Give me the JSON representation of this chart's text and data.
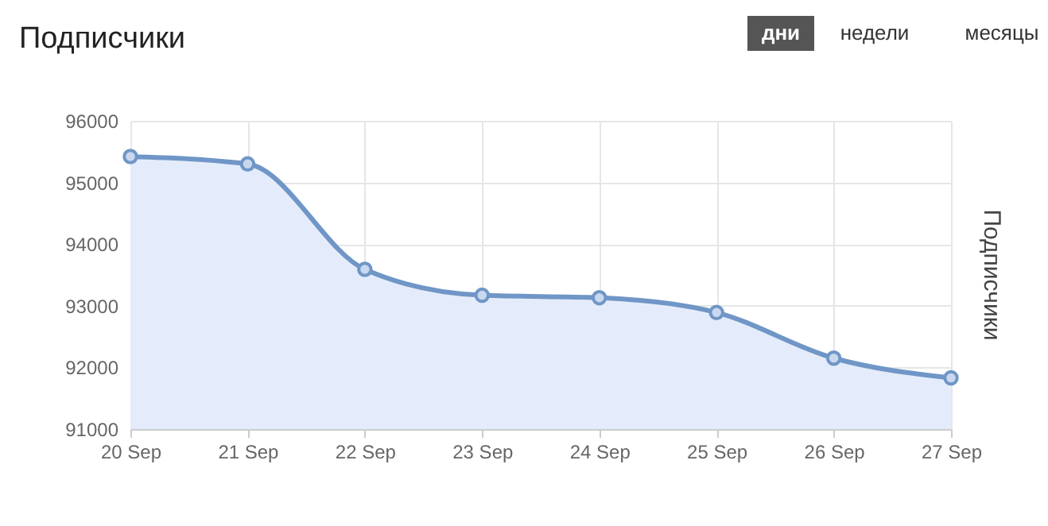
{
  "chart_data": {
    "type": "area",
    "title": "Подписчики",
    "ylabel": "Подписчики",
    "annotations": [
      "дни",
      "недели",
      "месяцы"
    ],
    "categories": [
      "20 Sep",
      "21 Sep",
      "22 Sep",
      "23 Sep",
      "24 Sep",
      "25 Sep",
      "26 Sep",
      "27 Sep"
    ],
    "series": [
      {
        "color": "#6f96c6",
        "values": [
          95420,
          95300,
          93590,
          93170,
          93130,
          92890,
          92150,
          91830
        ]
      }
    ],
    "ylim": [
      91000,
      96000
    ],
    "yticks": [
      91000,
      92000,
      93000,
      94000,
      95000,
      96000
    ],
    "grid": true,
    "marker": "circle",
    "line_style": "solid"
  }
}
